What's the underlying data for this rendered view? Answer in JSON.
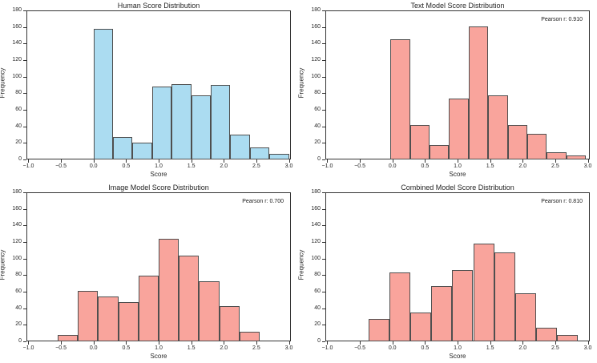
{
  "figure": {
    "background": "#ffffff",
    "kind": "matplotlib-2x2-histogram-grid"
  },
  "colors": {
    "human_fill": "#abdcf1",
    "model_fill": "#f9a49c",
    "bar_edge": "#4f4f4f",
    "spine": "#333333",
    "text": "#262626"
  },
  "axes_defaults": {
    "xlabel": "Score",
    "ylabel": "Frequency",
    "x_ticks": [
      -1.0,
      -0.5,
      0.0,
      0.5,
      1.0,
      1.5,
      2.0,
      2.5,
      3.0
    ],
    "x_tick_labels": [
      "−1.0",
      "−0.5",
      "0.0",
      "0.5",
      "1.0",
      "1.5",
      "2.0",
      "2.5",
      "3.0"
    ],
    "y_ticks": [
      0,
      20,
      40,
      60,
      80,
      100,
      120,
      140,
      160,
      180
    ],
    "y_tick_labels": [
      "0",
      "20",
      "40",
      "60",
      "80",
      "100",
      "120",
      "140",
      "160",
      "180"
    ],
    "xlim": [
      -1.03,
      3.03
    ],
    "ylim": [
      0,
      180
    ],
    "grid": false,
    "legend": "none"
  },
  "chart_data": [
    {
      "type": "bar",
      "kind": "histogram",
      "title": "Human Score Distribution",
      "xlabel": "Score",
      "ylabel": "Frequency",
      "fill": "human_fill",
      "bin_edges": [
        0.0,
        0.3,
        0.6,
        0.9,
        1.2,
        1.5,
        1.8,
        2.1,
        2.4,
        2.7,
        3.0
      ],
      "values": [
        158,
        27,
        20,
        88,
        91,
        77,
        90,
        30,
        15,
        7
      ],
      "xlim": [
        -1.03,
        3.03
      ],
      "ylim": [
        0,
        180
      ]
    },
    {
      "type": "bar",
      "kind": "histogram",
      "title": "Text Model Score Distribution",
      "xlabel": "Score",
      "ylabel": "Frequency",
      "fill": "model_fill",
      "annotation": "Pearson r: 0.910",
      "pearson_r": 0.91,
      "bin_edges": [
        -0.03,
        0.27,
        0.57,
        0.87,
        1.17,
        1.47,
        1.77,
        2.07,
        2.37,
        2.67,
        2.97
      ],
      "values": [
        145,
        42,
        17,
        74,
        161,
        77,
        42,
        31,
        9,
        5
      ],
      "xlim": [
        -1.03,
        3.03
      ],
      "ylim": [
        0,
        180
      ]
    },
    {
      "type": "bar",
      "kind": "histogram",
      "title": "Image Model Score Distribution",
      "xlabel": "Score",
      "ylabel": "Frequency",
      "fill": "model_fill",
      "annotation": "Pearson r: 0.700",
      "pearson_r": 0.7,
      "bin_edges": [
        -0.55,
        -0.24,
        0.07,
        0.38,
        0.69,
        1.0,
        1.31,
        1.62,
        1.93,
        2.24,
        2.55
      ],
      "values": [
        8,
        61,
        54,
        47,
        79,
        124,
        104,
        73,
        43,
        12
      ],
      "xlim": [
        -1.03,
        3.03
      ],
      "ylim": [
        0,
        180
      ]
    },
    {
      "type": "bar",
      "kind": "histogram",
      "title": "Combined Model Score Distribution",
      "xlabel": "Score",
      "ylabel": "Frequency",
      "fill": "model_fill",
      "annotation": "Pearson r: 0.810",
      "pearson_r": 0.81,
      "bin_edges": [
        -0.36,
        -0.04,
        0.28,
        0.6,
        0.92,
        1.24,
        1.56,
        1.88,
        2.2,
        2.52,
        2.84
      ],
      "values": [
        27,
        83,
        35,
        67,
        86,
        118,
        107,
        58,
        16,
        8
      ],
      "xlim": [
        -1.03,
        3.03
      ],
      "ylim": [
        0,
        180
      ]
    }
  ]
}
